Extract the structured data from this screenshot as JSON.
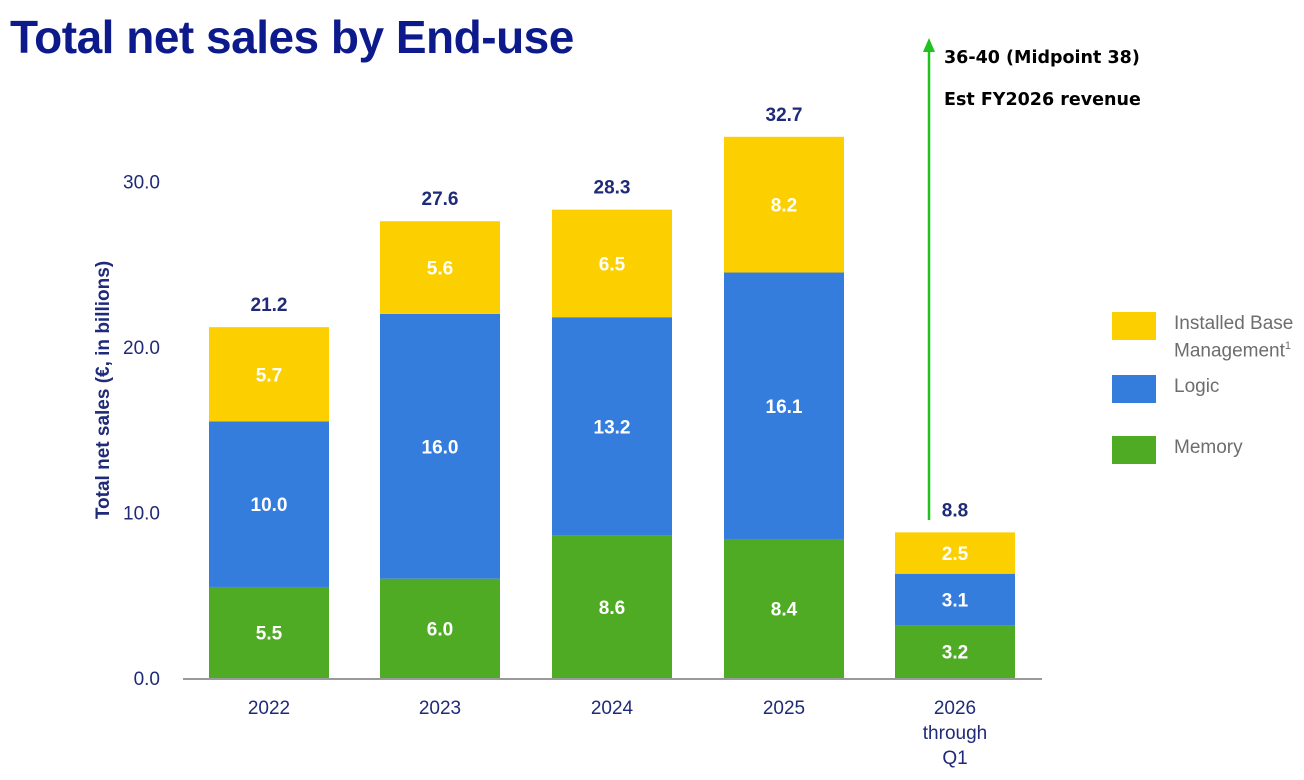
{
  "title": "Total net sales by End-use",
  "annotation": {
    "range_text": "36-40 (Midpoint 38)",
    "label_text": "Est FY2026 revenue",
    "arrow_color": "#1fc21f"
  },
  "legend": {
    "items": [
      {
        "label": "Installed Base\nManagement",
        "superscript": "1",
        "color": "#fcd000"
      },
      {
        "label": "Logic",
        "color": "#357ddc"
      },
      {
        "label": "Memory",
        "color": "#4fab24"
      }
    ]
  },
  "colors": {
    "title": "#0d1a8c",
    "axis_text": "#1f2a78",
    "total_labels": "#1f2a78",
    "memory": "#4fab24",
    "logic": "#357ddc",
    "ibm": "#fcd000"
  },
  "chart_data": {
    "type": "bar",
    "stacked": true,
    "categories": [
      "2022",
      "2023",
      "2024",
      "2025",
      "2026\nthrough\nQ1"
    ],
    "series": [
      {
        "name": "Memory",
        "values": [
          5.5,
          6.0,
          8.6,
          8.4,
          3.2
        ]
      },
      {
        "name": "Logic",
        "values": [
          10.0,
          16.0,
          13.2,
          16.1,
          3.1
        ]
      },
      {
        "name": "Installed Base Management",
        "values": [
          5.7,
          5.6,
          6.5,
          8.2,
          2.5
        ]
      }
    ],
    "totals": [
      21.2,
      27.6,
      28.3,
      32.7,
      8.8
    ],
    "ylabel": "Total net sales (€, in billions)",
    "yticks": [
      "0.0",
      "10.0",
      "20.0",
      "30.0"
    ],
    "ylim": [
      0,
      32.7
    ],
    "grid": false,
    "legend_position": "right"
  }
}
